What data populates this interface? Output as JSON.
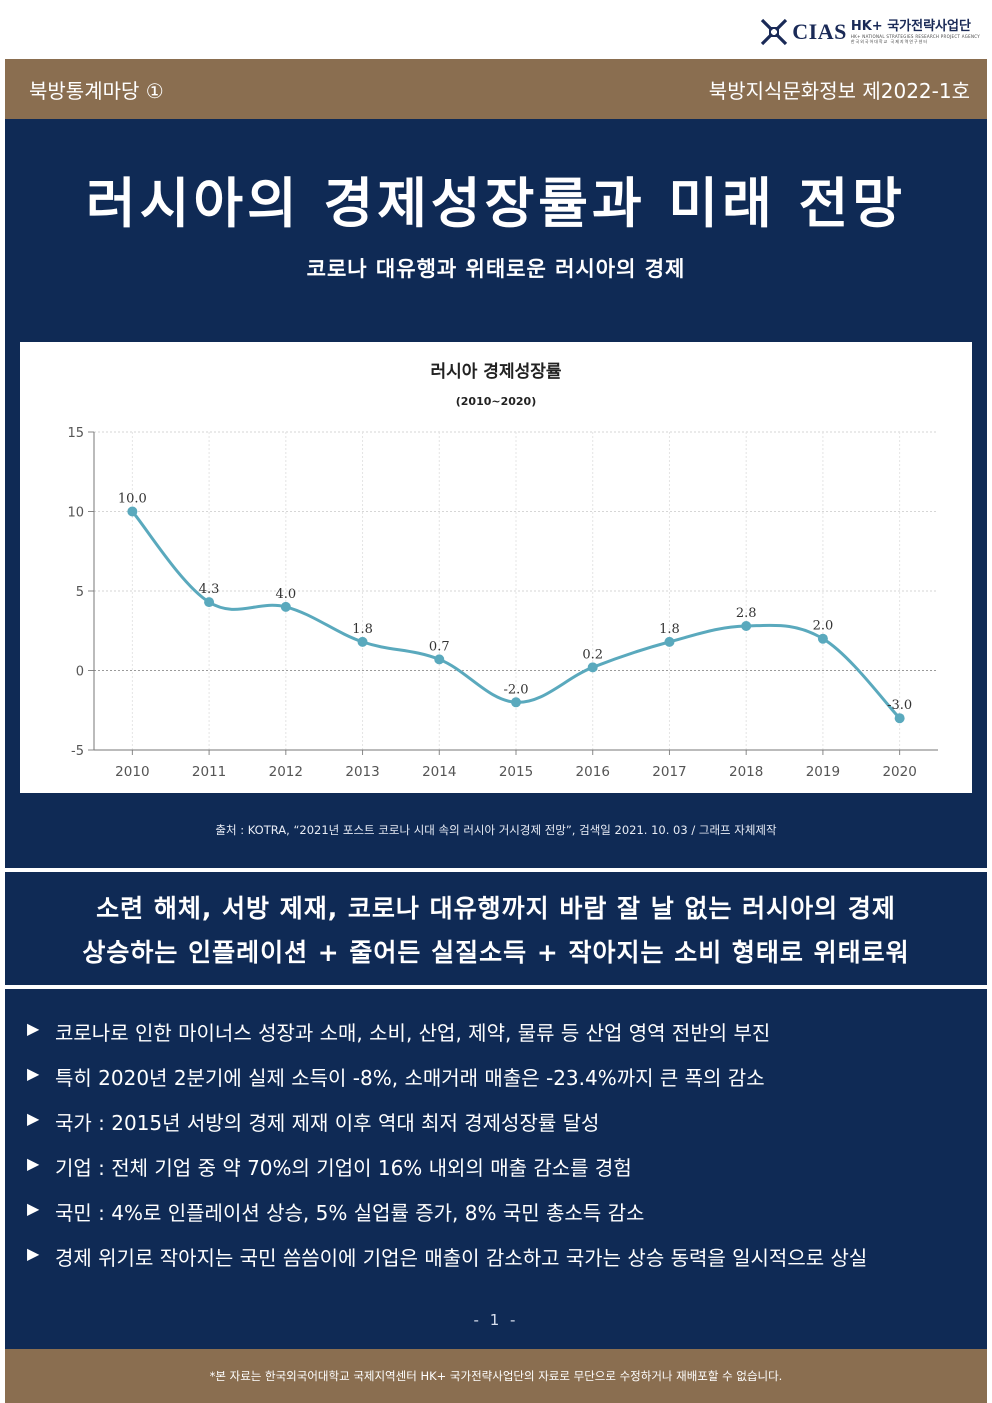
{
  "logo": {
    "mark": "CIAS",
    "org": "HK+ 국가전략사업단",
    "sub_en": "HK+ NATIONAL STRATEGIES RESEARCH PROJECT AGENCY",
    "sub_ko": "한국외국어대학교 국제지역연구센터"
  },
  "header": {
    "section": "북방통계마당 ①",
    "issue": "북방지식문화정보 제2022-1호"
  },
  "title": "러시아의 경제성장률과 미래 전망",
  "subtitle": "코로나 대유행과 위태로운 러시아의 경제",
  "chart_data": {
    "type": "line",
    "title": "러시아 경제성장률",
    "subtitle": "(2010~2020)",
    "categories": [
      "2010",
      "2011",
      "2012",
      "2013",
      "2014",
      "2015",
      "2016",
      "2017",
      "2018",
      "2019",
      "2020"
    ],
    "values": [
      10.0,
      4.3,
      4.0,
      1.8,
      0.7,
      -2.0,
      0.2,
      1.8,
      2.8,
      2.0,
      -3.0
    ],
    "data_labels": [
      "10.0",
      "4.3",
      "4.0",
      "1.8",
      "0.7",
      "-2.0",
      "0.2",
      "1.8",
      "2.8",
      "2.0",
      "-3.0"
    ],
    "yticks": [
      "15",
      "10",
      "5",
      "0",
      "-5"
    ],
    "ylim": [
      -5,
      15
    ],
    "grid": true,
    "line_color": "#5aa9bd"
  },
  "source": "출처 : KOTRA, “2021년 포스트 코로나 시대 속의 러시아 거시경제 전망”, 검색일 2021. 10. 03 / 그래프 자체제작",
  "headline": {
    "line1": "소련 해체, 서방 제재, 코로나 대유행까지 바람 잘 날 없는 러시아의 경제",
    "line2": "상승하는 인플레이션 + 줄어든 실질소득 + 작아지는 소비 형태로 위태로워"
  },
  "bullet_marker": "▶",
  "bullets": [
    "코로나로 인한 마이너스 성장과 소매, 소비, 산업, 제약, 물류 등 산업 영역 전반의 부진",
    "특히 2020년 2분기에 실제 소득이 -8%, 소매거래 매출은 -23.4%까지 큰 폭의 감소",
    "국가 : 2015년 서방의 경제 제재 이후 역대 최저 경제성장률 달성",
    "기업 : 전체 기업 중 약 70%의 기업이 16% 내외의 매출 감소를 경험",
    "국민 : 4%로 인플레이션 상승, 5% 실업률 증가, 8% 국민 총소득 감소",
    "경제 위기로 작아지는 국민 씀씀이에 기업은 매출이 감소하고 국가는 상승 동력을 일시적으로 상실"
  ],
  "page_number": "- 1 -",
  "footer": "*본 자료는 한국외국어대학교 국제지역센터 HK+ 국가전략사업단의 자료로 무단으로 수정하거나 재배포할 수 없습니다.",
  "colors": {
    "navy": "#0f2a55",
    "brown": "#8a6e50"
  }
}
